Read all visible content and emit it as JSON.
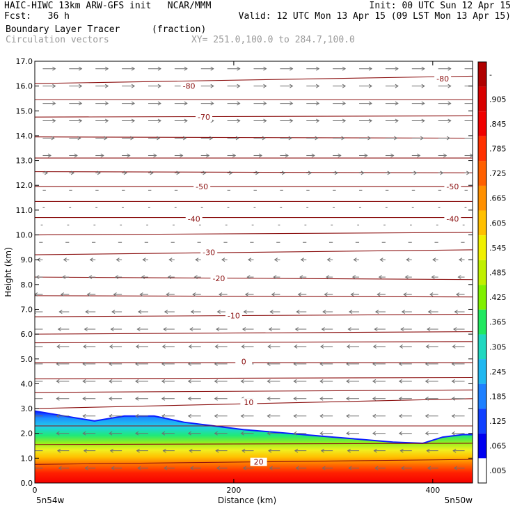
{
  "header": {
    "line1_left": "HAIC-HIWC 13km ARW-GFS init   NCAR/MMM",
    "line1_right": "Init: 00 UTC Sun 12 Apr 15",
    "line2_left": "Fcst:   36 h",
    "line2_right": "Valid: 12 UTC Mon 13 Apr 15 (09 LST Mon 13 Apr 15)",
    "line3_field": "Boundary Layer Tracer",
    "line3_units": "(fraction)",
    "line4_field": "Circulation vectors",
    "line4_xy": "XY= 251.0,100.0 to 284.7,100.0"
  },
  "chart_data": {
    "type": "cross-section",
    "xlabel": "Distance (km)",
    "ylabel": "Height (km)",
    "xlim": [
      0,
      440
    ],
    "ylim": [
      0,
      17
    ],
    "x_ticks": [
      "0",
      "200",
      "400"
    ],
    "x_end_labels": [
      "5n54w",
      "5n50w"
    ],
    "y_ticks": [
      "0.0",
      "1.0",
      "2.0",
      "3.0",
      "4.0",
      "5.0",
      "6.0",
      "7.0",
      "8.0",
      "9.0",
      "10.0",
      "11.0",
      "12.0",
      "13.0",
      "14.0",
      "15.0",
      "16.0",
      "17.0"
    ],
    "colorbar": {
      "labels": [
        "-",
        ".905",
        ".845",
        ".785",
        ".725",
        ".665",
        ".605",
        ".545",
        ".485",
        ".425",
        ".365",
        ".305",
        ".245",
        ".185",
        ".125",
        ".065",
        ".005"
      ]
    },
    "tracer_top_km": [
      [
        0,
        2.9
      ],
      [
        30,
        2.7
      ],
      [
        60,
        2.5
      ],
      [
        90,
        2.7
      ],
      [
        120,
        2.7
      ],
      [
        150,
        2.45
      ],
      [
        180,
        2.3
      ],
      [
        210,
        2.15
      ],
      [
        240,
        2.05
      ],
      [
        270,
        1.95
      ],
      [
        300,
        1.85
      ],
      [
        330,
        1.75
      ],
      [
        360,
        1.65
      ],
      [
        390,
        1.6
      ],
      [
        410,
        1.85
      ],
      [
        430,
        1.95
      ],
      [
        440,
        1.95
      ]
    ],
    "temperature_contours": [
      {
        "label": "-80",
        "levels_km": [
          16.1,
          16.4
        ]
      },
      {
        "label": "-70",
        "levels_km": [
          14.75,
          14.8
        ]
      },
      {
        "label": "-50",
        "levels_km": [
          11.95,
          11.95
        ]
      },
      {
        "label": "-40",
        "levels_km": [
          10.7,
          10.7
        ]
      },
      {
        "label": "-30",
        "levels_km": [
          9.2,
          9.4
        ]
      },
      {
        "label": "-20",
        "levels_km": [
          8.3,
          8.2
        ]
      },
      {
        "label": "-10",
        "levels_km": [
          6.7,
          6.8
        ]
      },
      {
        "label": "0",
        "levels_km": [
          4.85,
          4.85
        ]
      },
      {
        "label": "10",
        "levels_km": [
          3.0,
          3.4
        ]
      },
      {
        "label": "20",
        "levels_km": [
          0.75,
          0.95
        ]
      }
    ],
    "contour_labels": [
      {
        "text": "-80",
        "x": 155,
        "y": 16.0
      },
      {
        "text": "-80",
        "x": 410,
        "y": 16.3
      },
      {
        "text": "-70",
        "x": 170,
        "y": 14.75
      },
      {
        "text": "-50",
        "x": 168,
        "y": 11.95
      },
      {
        "text": "-50",
        "x": 420,
        "y": 11.95
      },
      {
        "text": "-40",
        "x": 160,
        "y": 10.65
      },
      {
        "text": "-40",
        "x": 420,
        "y": 10.65
      },
      {
        "text": "-30",
        "x": 175,
        "y": 9.3
      },
      {
        "text": "-20",
        "x": 185,
        "y": 8.25
      },
      {
        "text": "-10",
        "x": 200,
        "y": 6.75
      },
      {
        "text": "0",
        "x": 210,
        "y": 4.9
      },
      {
        "text": "10",
        "x": 215,
        "y": 3.25
      },
      {
        "text": "20",
        "x": 225,
        "y": 0.85
      }
    ],
    "wind_profile": [
      {
        "z": 16.7,
        "u": 1.0
      },
      {
        "z": 16.0,
        "u": 1.0
      },
      {
        "z": 15.3,
        "u": 1.0
      },
      {
        "z": 14.6,
        "u": 1.0
      },
      {
        "z": 13.9,
        "u": 0.9
      },
      {
        "z": 13.2,
        "u": 0.6
      },
      {
        "z": 12.5,
        "u": 0.3
      },
      {
        "z": 11.8,
        "u": 0.15
      },
      {
        "z": 11.1,
        "u": 0.05
      },
      {
        "z": 10.4,
        "u": -0.05
      },
      {
        "z": 9.7,
        "u": -0.2
      },
      {
        "z": 9.0,
        "u": -0.35
      },
      {
        "z": 8.3,
        "u": -0.45
      },
      {
        "z": 7.6,
        "u": -0.6
      },
      {
        "z": 6.9,
        "u": -0.75
      },
      {
        "z": 6.2,
        "u": -0.85
      },
      {
        "z": 5.5,
        "u": -0.95
      },
      {
        "z": 4.8,
        "u": -1.0
      },
      {
        "z": 4.1,
        "u": -1.0
      },
      {
        "z": 3.4,
        "u": -1.0
      },
      {
        "z": 2.7,
        "u": -1.0
      },
      {
        "z": 2.0,
        "u": -1.0
      },
      {
        "z": 1.3,
        "u": -0.9
      },
      {
        "z": 0.6,
        "u": -0.8
      }
    ],
    "colors": {
      "contour": "#8b1010",
      "vector": "#6e6e6e"
    }
  }
}
